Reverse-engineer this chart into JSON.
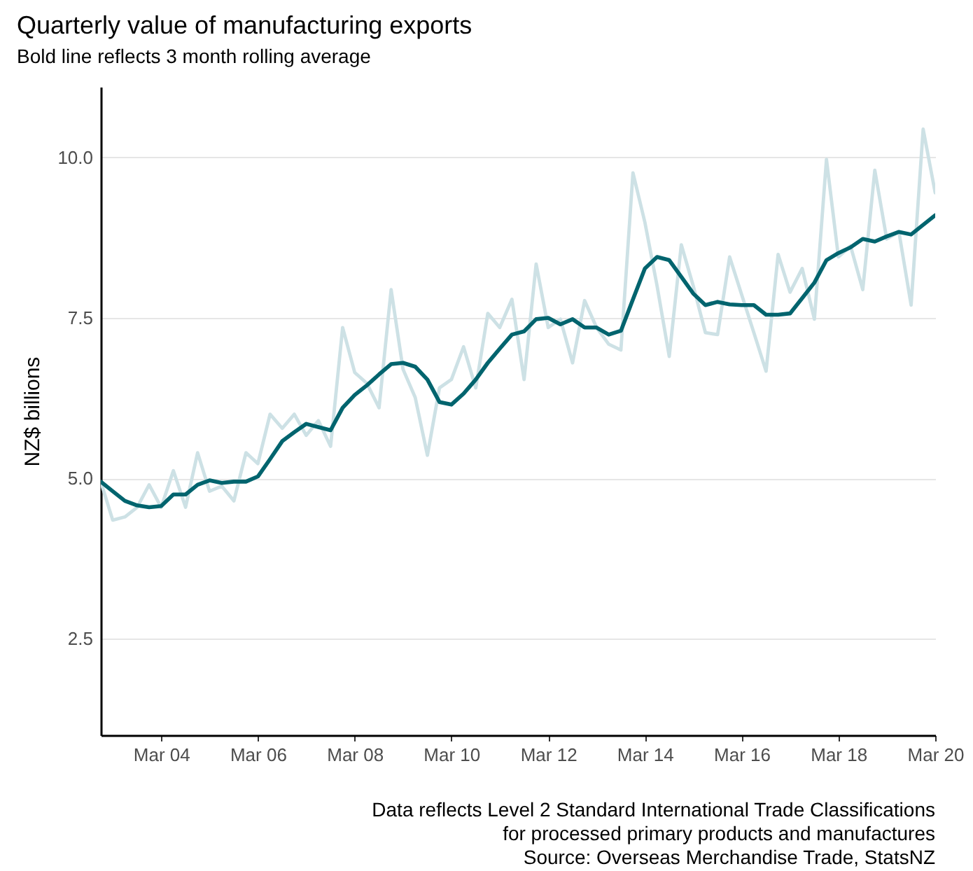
{
  "chart_data": {
    "type": "line",
    "title": "Quarterly value of manufacturing exports",
    "subtitle": "Bold line reflects 3 month rolling average",
    "ylabel": "NZ$ billions",
    "annotations": [
      "Data reflects Level 2 Standard International Trade Classifications",
      "for processed primary products and manufactures",
      "Source: Overseas Merchandise Trade, StatsNZ"
    ],
    "x": [
      "2002-12",
      "2003-03",
      "2003-06",
      "2003-09",
      "2003-12",
      "2004-03",
      "2004-06",
      "2004-09",
      "2004-12",
      "2005-03",
      "2005-06",
      "2005-09",
      "2005-12",
      "2006-03",
      "2006-06",
      "2006-09",
      "2006-12",
      "2007-03",
      "2007-06",
      "2007-09",
      "2007-12",
      "2008-03",
      "2008-06",
      "2008-09",
      "2008-12",
      "2009-03",
      "2009-06",
      "2009-09",
      "2009-12",
      "2010-03",
      "2010-06",
      "2010-09",
      "2010-12",
      "2011-03",
      "2011-06",
      "2011-09",
      "2011-12",
      "2012-03",
      "2012-06",
      "2012-09",
      "2012-12",
      "2013-03",
      "2013-06",
      "2013-09",
      "2013-12",
      "2014-03",
      "2014-06",
      "2014-09",
      "2014-12",
      "2015-03",
      "2015-06",
      "2015-09",
      "2015-12",
      "2016-03",
      "2016-06",
      "2016-09",
      "2016-12",
      "2017-03",
      "2017-06",
      "2017-09",
      "2017-12",
      "2018-03",
      "2018-06",
      "2018-09",
      "2018-12",
      "2019-03",
      "2019-06",
      "2019-09",
      "2019-12",
      "2020-03"
    ],
    "series": [
      {
        "color": "#cde1e5",
        "values": [
          4.95,
          4.35,
          4.4,
          4.55,
          4.9,
          4.55,
          5.12,
          4.55,
          5.4,
          4.8,
          4.88,
          4.65,
          5.4,
          5.23,
          6.0,
          5.78,
          6.0,
          5.67,
          5.9,
          5.5,
          7.35,
          6.65,
          6.48,
          6.1,
          7.94,
          6.7,
          6.26,
          5.36,
          6.41,
          6.54,
          7.05,
          6.41,
          7.57,
          7.35,
          7.79,
          6.54,
          8.34,
          7.35,
          7.48,
          6.8,
          7.77,
          7.35,
          7.09,
          7.0,
          9.76,
          8.99,
          8.0,
          6.9,
          8.64,
          8.0,
          7.27,
          7.24,
          8.45,
          7.86,
          7.27,
          6.67,
          8.49,
          7.9,
          8.27,
          7.48,
          9.97,
          8.45,
          8.62,
          7.94,
          9.8,
          8.73,
          8.84,
          7.7,
          10.44,
          9.45
        ]
      },
      {
        "color": "#00646e",
        "values": [
          4.95,
          4.8,
          4.65,
          4.58,
          4.55,
          4.57,
          4.75,
          4.75,
          4.9,
          4.97,
          4.93,
          4.95,
          4.95,
          5.03,
          5.3,
          5.58,
          5.72,
          5.85,
          5.8,
          5.75,
          6.1,
          6.3,
          6.45,
          6.62,
          6.78,
          6.8,
          6.74,
          6.54,
          6.19,
          6.15,
          6.32,
          6.54,
          6.8,
          7.02,
          7.24,
          7.29,
          7.48,
          7.5,
          7.4,
          7.48,
          7.35,
          7.35,
          7.24,
          7.3,
          7.79,
          8.27,
          8.45,
          8.4,
          8.14,
          7.88,
          7.7,
          7.75,
          7.71,
          7.7,
          7.7,
          7.55,
          7.55,
          7.57,
          7.81,
          8.05,
          8.4,
          8.51,
          8.6,
          8.73,
          8.69,
          8.77,
          8.84,
          8.8,
          8.95,
          9.1
        ]
      }
    ],
    "xlim": [
      "2002-12",
      "2020-03"
    ],
    "xticks": [
      {
        "value": "2004-03",
        "label": "Mar 04"
      },
      {
        "value": "2006-03",
        "label": "Mar 06"
      },
      {
        "value": "2008-03",
        "label": "Mar 08"
      },
      {
        "value": "2010-03",
        "label": "Mar 10"
      },
      {
        "value": "2012-03",
        "label": "Mar 12"
      },
      {
        "value": "2014-03",
        "label": "Mar 14"
      },
      {
        "value": "2016-03",
        "label": "Mar 16"
      },
      {
        "value": "2018-03",
        "label": "Mar 18"
      },
      {
        "value": "2020-03",
        "label": "Mar 20"
      }
    ],
    "ylim": [
      1.0,
      11.1
    ],
    "yticks": [
      {
        "value": 2.5,
        "label": "2.5"
      },
      {
        "value": 5,
        "label": "5.0"
      },
      {
        "value": 7.5,
        "label": "7.5"
      },
      {
        "value": 10,
        "label": "10.0"
      }
    ],
    "grid": "y",
    "line_style": "solid",
    "marker": "none"
  }
}
